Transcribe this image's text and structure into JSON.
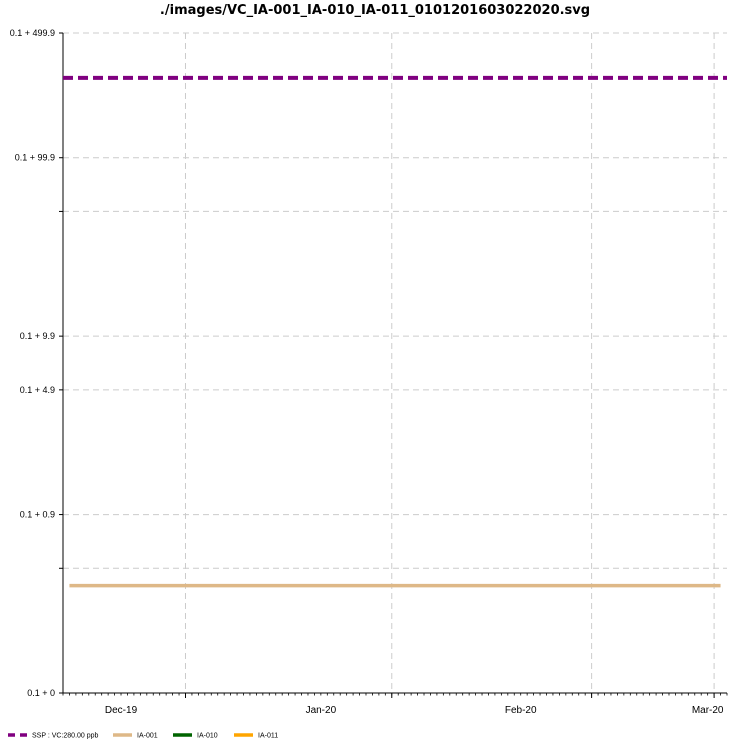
{
  "chart_data": {
    "type": "line",
    "title": "./images/VC_IA-001_IA-010_IA-011_0101201603022020.svg",
    "xlabel": "",
    "ylabel": "",
    "y_scale": "log",
    "y_ticks": [
      {
        "label": "0.1 + 499.9",
        "value": 500
      },
      {
        "label": "0.1 + 99.9",
        "value": 100
      },
      {
        "label": "",
        "value": 50
      },
      {
        "label": "0.1 + 9.9",
        "value": 10
      },
      {
        "label": "0.1 + 4.9",
        "value": 5
      },
      {
        "label": "0.1 + 0.9",
        "value": 1
      },
      {
        "label": "",
        "value": 0.5
      },
      {
        "label": "0.1 + 0",
        "value": 0.1
      }
    ],
    "ylim": [
      0.1,
      500
    ],
    "x_range": [
      "2019-11-22",
      "2020-03-04"
    ],
    "x_ticks": [
      {
        "label": "Dec-19",
        "date": "2019-12-01"
      },
      {
        "label": "Jan-20",
        "date": "2020-01-01"
      },
      {
        "label": "Feb-20",
        "date": "2020-02-01"
      },
      {
        "label": "Mar-20",
        "date": "2020-03-01"
      }
    ],
    "x_gridlines": [
      "2019-12-11",
      "2020-01-12",
      "2020-02-12",
      "2020-03-02"
    ],
    "grid": true,
    "legend_position": "bottom",
    "series": [
      {
        "name": "SSP : VC:280.00 ppb",
        "color": "#800080",
        "style": "dashed",
        "points": [
          {
            "x": "2019-11-22",
            "y": 280
          },
          {
            "x": "2020-03-04",
            "y": 280
          }
        ]
      },
      {
        "name": "IA-001",
        "color": "#DEB887",
        "style": "solid",
        "points": [
          {
            "x": "2019-11-23",
            "y": 0.4
          },
          {
            "x": "2020-03-03",
            "y": 0.4
          }
        ]
      },
      {
        "name": "IA-010",
        "color": "#006400",
        "style": "solid",
        "points": []
      },
      {
        "name": "IA-011",
        "color": "#FFA500",
        "style": "solid",
        "points": []
      }
    ]
  }
}
